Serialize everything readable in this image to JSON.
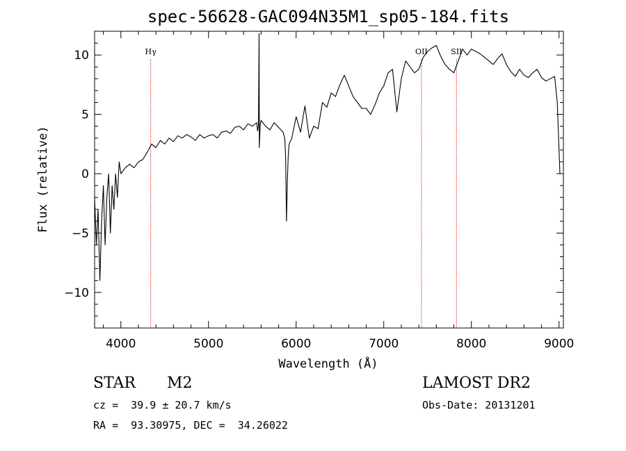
{
  "chart_data": {
    "type": "line",
    "title": "spec-56628-GAC094N35M1_sp05-184.fits",
    "xlabel": "Wavelength (Å)",
    "ylabel": "Flux (relative)",
    "xlim": [
      3700,
      9050
    ],
    "ylim": [
      -13,
      12
    ],
    "x_ticks": [
      4000,
      5000,
      6000,
      7000,
      8000,
      9000
    ],
    "y_ticks": [
      -10,
      -5,
      0,
      5,
      10
    ],
    "x_tick_labels": [
      "4000",
      "5000",
      "6000",
      "7000",
      "8000",
      "9000"
    ],
    "y_tick_labels": [
      "−10",
      "−5",
      "0",
      "5",
      "10"
    ],
    "line_color": "#000000",
    "marker_color": "#cc2222",
    "spectral_lines": [
      {
        "name": "Hγ",
        "wavelength": 4340
      },
      {
        "name": "OII",
        "wavelength": 7430
      },
      {
        "name": "SII",
        "wavelength": 7830
      }
    ],
    "series": [
      {
        "x": [
          3700,
          3720,
          3740,
          3760,
          3780,
          3800,
          3820,
          3840,
          3860,
          3880,
          3900,
          3920,
          3940,
          3960,
          3980,
          4000,
          4050,
          4100,
          4150,
          4200,
          4250,
          4300,
          4350,
          4400,
          4450,
          4500,
          4550,
          4600,
          4650,
          4700,
          4750,
          4800,
          4850,
          4900,
          4950,
          5000,
          5050,
          5100,
          5150,
          5200,
          5250,
          5300,
          5350,
          5400,
          5450,
          5500,
          5550,
          5560,
          5570,
          5577,
          5580,
          5590,
          5600,
          5650,
          5700,
          5750,
          5800,
          5850,
          5870,
          5880,
          5890,
          5900,
          5910,
          5920,
          5950,
          6000,
          6050,
          6100,
          6150,
          6200,
          6250,
          6300,
          6350,
          6400,
          6450,
          6500,
          6550,
          6600,
          6650,
          6700,
          6750,
          6800,
          6850,
          6900,
          6950,
          7000,
          7050,
          7100,
          7150,
          7200,
          7250,
          7300,
          7350,
          7400,
          7450,
          7500,
          7550,
          7600,
          7650,
          7700,
          7750,
          7800,
          7850,
          7900,
          7950,
          8000,
          8050,
          8100,
          8150,
          8200,
          8250,
          8300,
          8350,
          8400,
          8450,
          8500,
          8550,
          8600,
          8650,
          8700,
          8750,
          8800,
          8850,
          8900,
          8950,
          8980,
          9000,
          9010
        ],
        "y": [
          -2,
          -6,
          -3,
          -9,
          -4,
          -1,
          -6,
          -2,
          0,
          -5,
          -1,
          -3,
          0,
          -2,
          1,
          0,
          0.5,
          0.8,
          0.5,
          1.0,
          1.2,
          1.8,
          2.5,
          2.2,
          2.8,
          2.5,
          3.0,
          2.7,
          3.2,
          3.0,
          3.3,
          3.1,
          2.8,
          3.3,
          3.0,
          3.2,
          3.3,
          3.0,
          3.5,
          3.6,
          3.4,
          3.9,
          4.0,
          3.7,
          4.2,
          4.0,
          4.3,
          3.6,
          4.1,
          11.8,
          2.2,
          4.1,
          4.5,
          4.0,
          3.7,
          4.3,
          3.9,
          3.5,
          3.0,
          1.5,
          -4.0,
          -0.5,
          1.5,
          2.5,
          3.0,
          4.8,
          3.5,
          5.7,
          3.0,
          4.0,
          3.8,
          6.0,
          5.6,
          6.8,
          6.5,
          7.5,
          8.3,
          7.4,
          6.5,
          6.0,
          5.5,
          5.5,
          5.0,
          5.8,
          6.8,
          7.4,
          8.5,
          8.8,
          5.2,
          8.0,
          9.5,
          9.0,
          8.5,
          8.8,
          9.8,
          10.3,
          10.6,
          10.8,
          9.9,
          9.2,
          8.8,
          8.5,
          9.5,
          10.5,
          10.0,
          10.5,
          10.3,
          10.1,
          9.8,
          9.5,
          9.2,
          9.7,
          10.1,
          9.2,
          8.6,
          8.2,
          8.8,
          8.3,
          8.1,
          8.5,
          8.8,
          8.1,
          7.8,
          8.0,
          8.2,
          6.0,
          2.0,
          0.0
        ]
      }
    ]
  },
  "footer": {
    "object_class": "STAR",
    "subclass": "M2",
    "redshift": "cz =  39.9 ± 20.7 km/s",
    "coords": "RA =  93.30975, DEC =  34.26022",
    "survey": "LAMOST DR2",
    "obs_date": "Obs-Date: 20131201"
  }
}
